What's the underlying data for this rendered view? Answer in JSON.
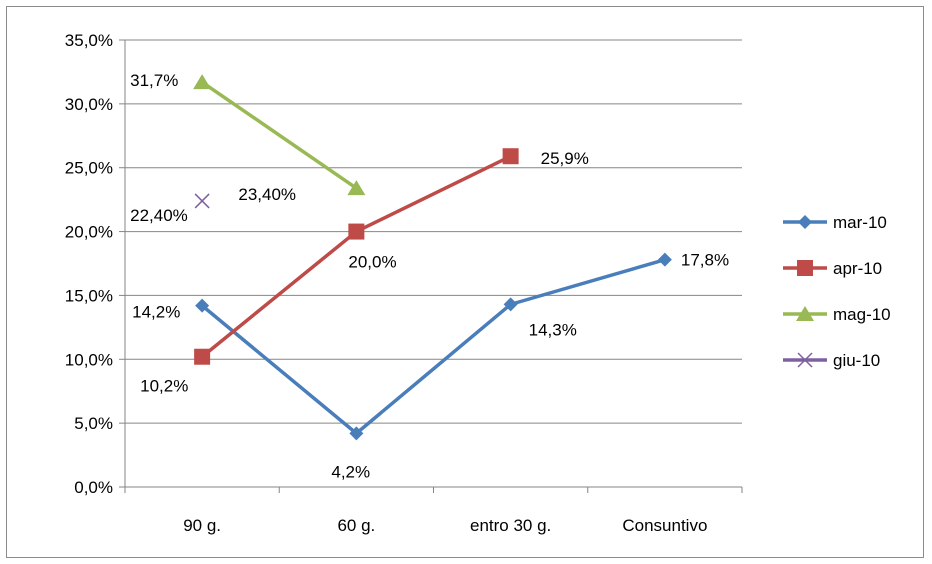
{
  "chart_data": {
    "type": "line",
    "categories": [
      "90 g.",
      "60 g.",
      "entro 30 g.",
      "Consuntivo"
    ],
    "ylim": [
      0,
      35
    ],
    "yticks": [
      "0,0%",
      "5,0%",
      "10,0%",
      "15,0%",
      "20,0%",
      "25,0%",
      "30,0%",
      "35,0%"
    ],
    "grid": true,
    "legend_position": "right",
    "series": [
      {
        "name": "mar-10",
        "color": "#4a7ebb",
        "marker": "diamond",
        "values": [
          14.2,
          4.2,
          14.3,
          17.8
        ],
        "labels": [
          "14,2%",
          "4,2%",
          "14,3%",
          "17,8%"
        ]
      },
      {
        "name": "apr-10",
        "color": "#be4b48",
        "marker": "square",
        "values": [
          10.2,
          20.0,
          25.9,
          null
        ],
        "labels": [
          "10,2%",
          "20,0%",
          "25,9%",
          null
        ]
      },
      {
        "name": "mag-10",
        "color": "#98b954",
        "marker": "triangle",
        "values": [
          31.7,
          23.4,
          null,
          null
        ],
        "labels": [
          "31,7%",
          "23,40%",
          null,
          null
        ]
      },
      {
        "name": "giu-10",
        "color": "#7d60a0",
        "marker": "x",
        "values": [
          22.4,
          null,
          null,
          null
        ],
        "labels": [
          "22,40%",
          null,
          null,
          null
        ]
      }
    ]
  }
}
